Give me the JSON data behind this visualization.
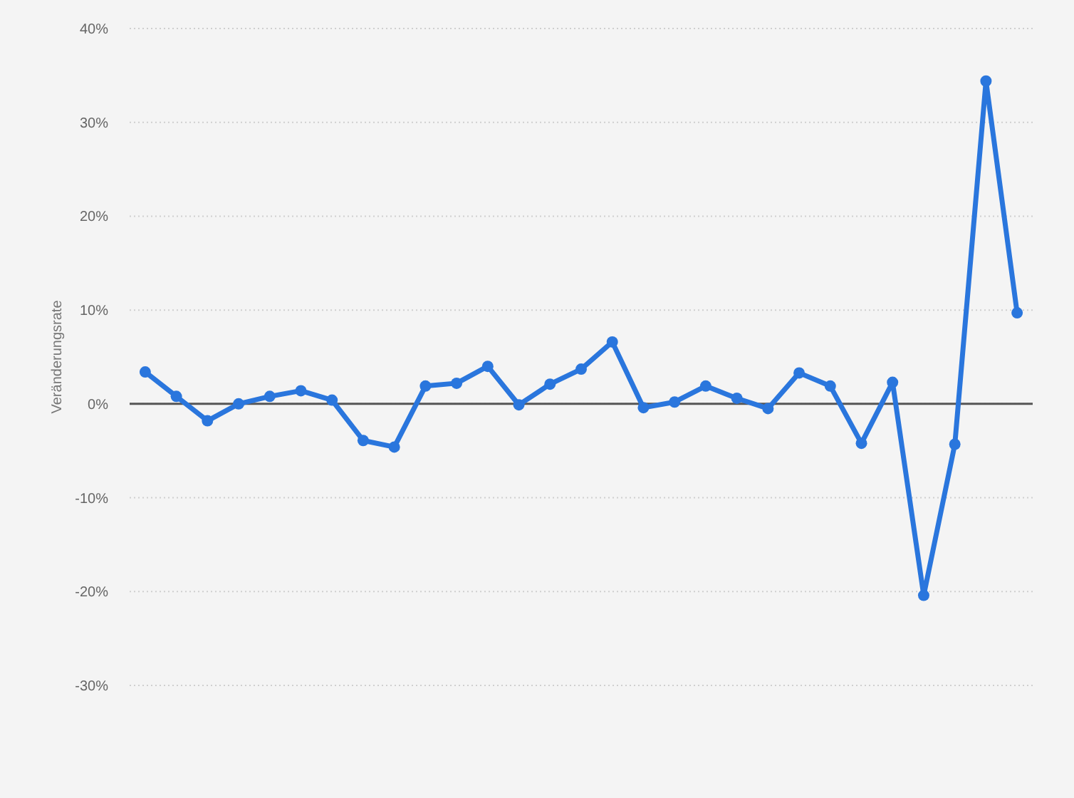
{
  "chart_data": {
    "type": "line",
    "ylabel": "Veränderungsrate",
    "categories": [
      null,
      null,
      null,
      null,
      null,
      null,
      null,
      null,
      null,
      null,
      null,
      null,
      null,
      null,
      null,
      null,
      null,
      null,
      null,
      null,
      null,
      null,
      null,
      null,
      null,
      null,
      null,
      null,
      null
    ],
    "series": [
      {
        "color": "#2a76dd",
        "values": [
          3.4,
          0.8,
          -1.8,
          0.0,
          0.8,
          1.4,
          0.4,
          -3.9,
          -4.6,
          1.9,
          2.2,
          4.0,
          -0.1,
          2.1,
          3.7,
          6.6,
          -0.4,
          0.2,
          1.9,
          0.6,
          -0.5,
          3.3,
          1.9,
          -4.2,
          2.3,
          -20.4,
          -4.3,
          34.4,
          9.7
        ]
      }
    ],
    "ylim": [
      -30,
      40
    ],
    "yticks": [
      {
        "value": -30,
        "label": "-30%"
      },
      {
        "value": -20,
        "label": "-20%"
      },
      {
        "value": -10,
        "label": "-10%"
      },
      {
        "value": 0,
        "label": "0%"
      },
      {
        "value": 10,
        "label": "10%"
      },
      {
        "value": 20,
        "label": "20%"
      },
      {
        "value": 30,
        "label": "30%"
      },
      {
        "value": 40,
        "label": "40%"
      }
    ],
    "grid": "y",
    "tick_labels": "y",
    "marker": "circle",
    "line_style": "solid",
    "ref_lines": [
      {
        "axis": "y",
        "value": 0,
        "color": "#555555"
      }
    ]
  }
}
